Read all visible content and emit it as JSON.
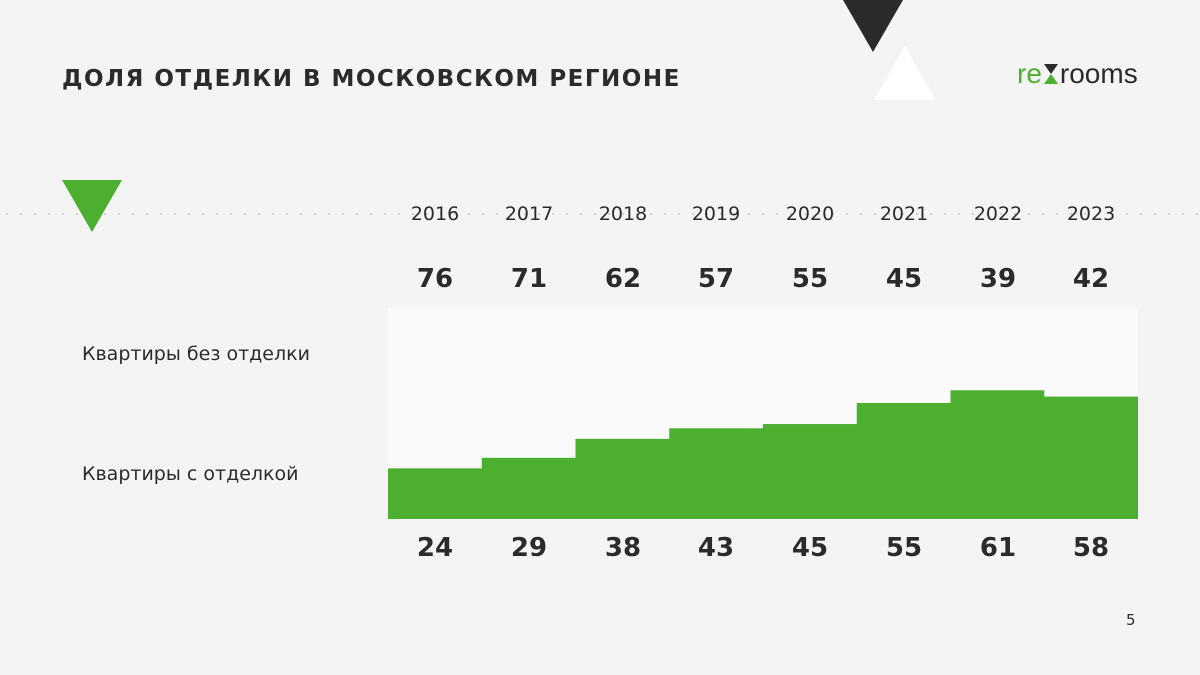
{
  "page": {
    "title": "ДОЛЯ ОТДЕЛКИ В МОСКОВСКОМ РЕГИОНЕ",
    "page_number": "5"
  },
  "logo": {
    "part1": "re",
    "part2": "rooms"
  },
  "colors": {
    "accent": "#4caf30",
    "dark": "#2b2b2b",
    "background": "#f4f4f4",
    "panel": "#fafafa"
  },
  "decorations": [
    "green-triangle-icon",
    "dark-triangle-icon",
    "white-triangle-icon",
    "hourglass-icon"
  ],
  "chart_data": {
    "type": "area",
    "categories": [
      "2016",
      "2017",
      "2018",
      "2019",
      "2020",
      "2021",
      "2022",
      "2023"
    ],
    "series": [
      {
        "name": "Квартиры без отделки",
        "values": [
          76,
          71,
          62,
          57,
          55,
          45,
          39,
          42
        ]
      },
      {
        "name": "Квартиры с отделкой",
        "values": [
          24,
          29,
          38,
          43,
          45,
          55,
          61,
          58
        ]
      }
    ],
    "ylim": [
      0,
      100
    ],
    "title": "",
    "xlabel": "",
    "ylabel": ""
  }
}
